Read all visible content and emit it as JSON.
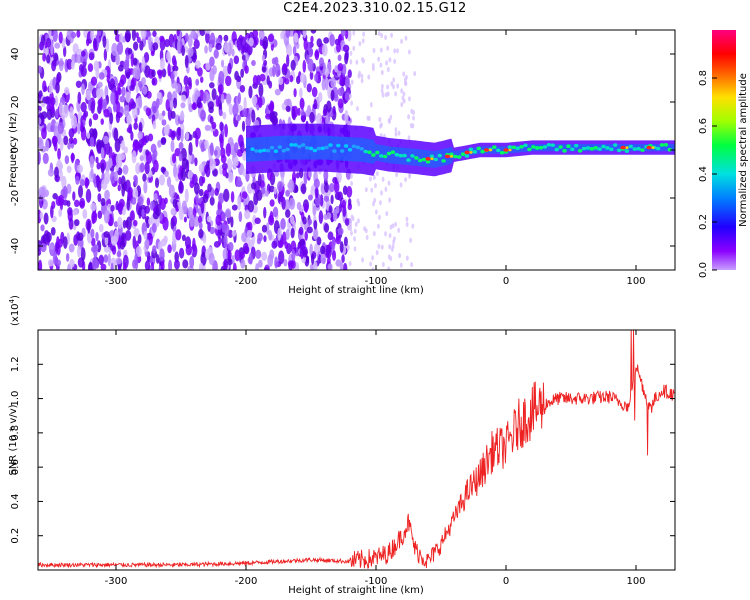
{
  "page": {
    "title": "C2E4.2023.310.02.15.G12"
  },
  "colors": {
    "spec_purple": "#7a00ff",
    "spec_blue": "#2a00ff",
    "snr_line": "#ee2222",
    "axis": "#000000"
  },
  "chart_data": [
    {
      "type": "heatmap",
      "title": "C2E4.2023.310.02.15.G12",
      "xlabel": "Height of straight line (km)",
      "ylabel": "Frequency (Hz)",
      "xlim": [
        -360,
        130
      ],
      "ylim": [
        -50,
        50
      ],
      "xticks": [
        -300,
        -200,
        -100,
        0,
        100
      ],
      "yticks": [
        -40,
        -20,
        0,
        20,
        40
      ],
      "colorbar": {
        "label": "Normalized spectral amplitude",
        "range": [
          0.0,
          1.0
        ],
        "ticks": [
          0.0,
          0.2,
          0.4,
          0.6,
          0.8
        ],
        "colormap": "hsv-rainbow (purple→blue→cyan→green→yellow→red→magenta)"
      },
      "description_points": {
        "noise_region_x": [
          -360,
          -120
        ],
        "sparse_region_x": [
          -120,
          -70
        ],
        "signal_centerline": [
          {
            "x": -200,
            "y": 0
          },
          {
            "x": -170,
            "y": 1
          },
          {
            "x": -140,
            "y": 1
          },
          {
            "x": -110,
            "y": 0
          },
          {
            "x": -90,
            "y": -2
          },
          {
            "x": -70,
            "y": -3
          },
          {
            "x": -55,
            "y": -4
          },
          {
            "x": -40,
            "y": -2
          },
          {
            "x": -20,
            "y": 0
          },
          {
            "x": 0,
            "y": 0
          },
          {
            "x": 20,
            "y": 1
          },
          {
            "x": 60,
            "y": 1
          },
          {
            "x": 100,
            "y": 1
          },
          {
            "x": 130,
            "y": 1
          }
        ],
        "strong_peaks_x": [
          -60,
          -45,
          -30,
          -15,
          0,
          90,
          110
        ]
      }
    },
    {
      "type": "line",
      "xlabel": "Height of straight line (km)",
      "ylabel": "SNR (10 * v/v)",
      "ylabel_exponent": "(x10^4)",
      "y_unit_multiplier_base": "x10",
      "y_unit_multiplier_exp": "4",
      "xlim": [
        -360,
        130
      ],
      "ylim": [
        0.0,
        1.4
      ],
      "xticks": [
        -300,
        -200,
        -100,
        0,
        100
      ],
      "yticks": [
        0.2,
        0.4,
        0.6,
        0.8,
        1.0,
        1.2
      ],
      "series": [
        {
          "name": "",
          "x": [
            -360,
            -300,
            -250,
            -200,
            -150,
            -120,
            -100,
            -90,
            -80,
            -75,
            -70,
            -60,
            -50,
            -40,
            -30,
            -20,
            -10,
            0,
            10,
            20,
            30,
            40,
            60,
            80,
            95,
            100,
            110,
            120,
            130
          ],
          "y": [
            0.03,
            0.03,
            0.03,
            0.04,
            0.06,
            0.05,
            0.07,
            0.1,
            0.2,
            0.28,
            0.12,
            0.05,
            0.15,
            0.3,
            0.45,
            0.55,
            0.7,
            0.72,
            0.85,
            0.92,
            0.97,
            1.0,
            1.0,
            1.01,
            0.95,
            1.2,
            0.95,
            1.05,
            1.02
          ]
        }
      ]
    }
  ],
  "top_chart": {
    "ylabel": "Frequency (Hz)",
    "xlabel": "Height of straight line (km)",
    "xticks": [
      "-300",
      "-200",
      "-100",
      "0",
      "100"
    ],
    "yticks": [
      "-40",
      "-20",
      "0",
      "20",
      "40"
    ],
    "colorbar_label": "Normalized spectral amplitude",
    "colorbar_ticks": [
      "0.0",
      "0.2",
      "0.4",
      "0.6",
      "0.8"
    ]
  },
  "bottom_chart": {
    "ylabel": "SNR (10 * v/v)",
    "exp_base": "(x10",
    "exp_sup": "4",
    "exp_close": ")",
    "xlabel": "Height of straight line (km)",
    "xticks": [
      "-300",
      "-200",
      "-100",
      "0",
      "100"
    ],
    "yticks": [
      "0.2",
      "0.4",
      "0.6",
      "0.8",
      "1.0",
      "1.2"
    ]
  }
}
